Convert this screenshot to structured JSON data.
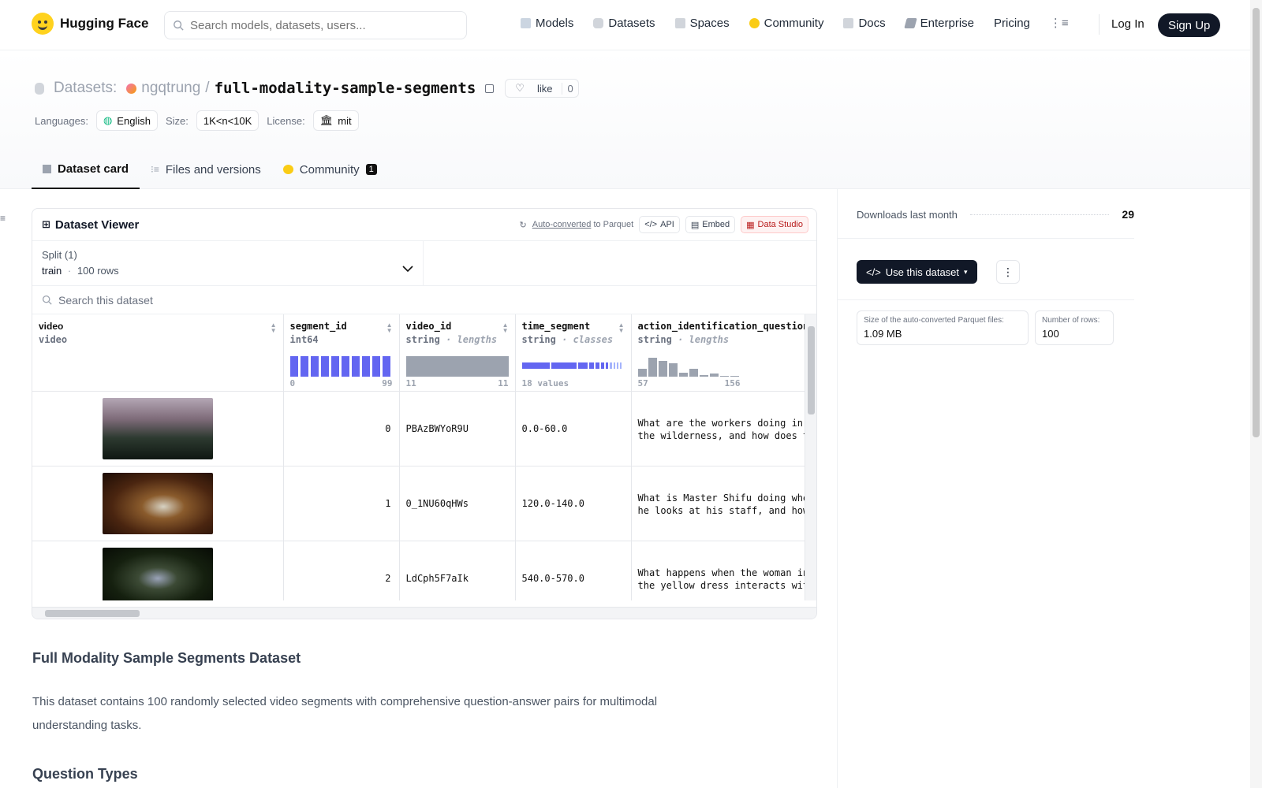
{
  "nav": {
    "brand": "Hugging Face",
    "search_placeholder": "Search models, datasets, users...",
    "links": [
      "Models",
      "Datasets",
      "Spaces",
      "Community",
      "Docs",
      "Enterprise",
      "Pricing"
    ],
    "login": "Log In",
    "signup": "Sign Up"
  },
  "header": {
    "section": "Datasets:",
    "owner": "ngqtrung",
    "slash": "/",
    "repo": "full-modality-sample-segments",
    "like_label": "like",
    "like_count": "0",
    "languages_label": "Languages:",
    "language": "English",
    "size_label": "Size:",
    "size": "1K<n<10K",
    "license_label": "License:",
    "license": "mit"
  },
  "tabs": [
    {
      "label": "Dataset card",
      "icon": "dataset-card-icon"
    },
    {
      "label": "Files and versions",
      "icon": "files-icon"
    },
    {
      "label": "Community",
      "icon": "community-icon",
      "badge": "1"
    }
  ],
  "viewer": {
    "title": "Dataset Viewer",
    "auto_converted": "Auto-converted",
    "to_parquet": "to Parquet",
    "api": "API",
    "embed": "Embed",
    "data_studio": "Data Studio",
    "split_label": "Split (1)",
    "split_name": "train",
    "split_dot": "·",
    "split_rows": "100 rows",
    "search_placeholder": "Search this dataset",
    "columns": [
      {
        "name": "video",
        "type": "video",
        "subtype": ""
      },
      {
        "name": "segment_id",
        "type": "int64",
        "subtype": "",
        "min": "0",
        "max": "99"
      },
      {
        "name": "video_id",
        "type": "string",
        "subtype": "· lengths",
        "min": "11",
        "max": "11"
      },
      {
        "name": "time_segment",
        "type": "string",
        "subtype": "· classes",
        "values_label": "18 values"
      },
      {
        "name": "action_identification_question",
        "type": "string",
        "subtype": "· lengths",
        "min": "57",
        "max": "156"
      }
    ],
    "rows": [
      {
        "segment_id": "0",
        "video_id": "PBAzBWYoR9U",
        "time_segment": "0.0-60.0",
        "question_1": "What are the workers doing in",
        "question_2": "the wilderness, and how does t"
      },
      {
        "segment_id": "1",
        "video_id": "0_1NU60qHWs",
        "time_segment": "120.0-140.0",
        "question_1": "What is Master Shifu doing whe",
        "question_2": "he looks at his staff, and how"
      },
      {
        "segment_id": "2",
        "video_id": "LdCph5F7aIk",
        "time_segment": "540.0-570.0",
        "question_1": "What happens when the woman in",
        "question_2": "the yellow dress interacts wit"
      }
    ]
  },
  "sidebar": {
    "downloads_label": "Downloads last month",
    "downloads": "29",
    "use_dataset": "Use this dataset",
    "parquet_size_label": "Size of the auto-converted Parquet files:",
    "parquet_size": "1.09 MB",
    "rows_label": "Number of rows:",
    "rows": "100"
  },
  "card": {
    "title": "Full Modality Sample Segments Dataset",
    "text": "This dataset contains 100 randomly selected video segments with comprehensive question-answer pairs for multimodal understanding tasks.",
    "subtitle": "Question Types"
  }
}
